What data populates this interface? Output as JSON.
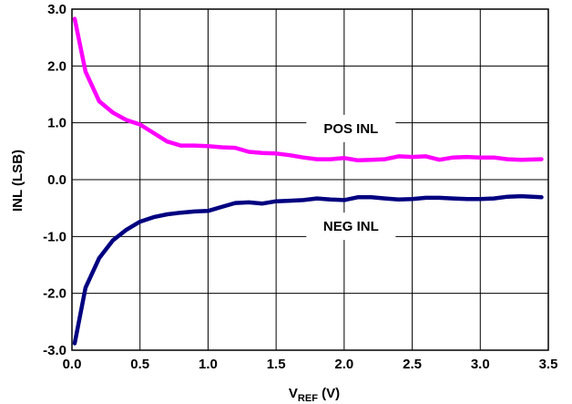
{
  "chart_data": {
    "type": "line",
    "xlabel_main": "V",
    "xlabel_sub": "REF",
    "xlabel_unit": " (V)",
    "ylabel": "INL (LSB)",
    "xlim": [
      0.0,
      3.5
    ],
    "ylim": [
      -3.0,
      3.0
    ],
    "x_ticks": [
      "0.0",
      "0.5",
      "1.0",
      "1.5",
      "2.0",
      "2.5",
      "3.0",
      "3.5"
    ],
    "y_ticks": [
      "3.0",
      "2.0",
      "1.0",
      "0.0",
      "-1.0",
      "-2.0",
      "-3.0"
    ],
    "grid": true,
    "series": [
      {
        "name": "POS INL",
        "color": "#ff00ff",
        "x": [
          0.02,
          0.1,
          0.2,
          0.3,
          0.4,
          0.5,
          0.6,
          0.7,
          0.8,
          0.9,
          1.0,
          1.1,
          1.2,
          1.3,
          1.4,
          1.5,
          1.6,
          1.7,
          1.8,
          1.9,
          2.0,
          2.1,
          2.2,
          2.3,
          2.4,
          2.5,
          2.6,
          2.7,
          2.8,
          2.9,
          3.0,
          3.1,
          3.2,
          3.3,
          3.45
        ],
        "y": [
          2.83,
          1.9,
          1.38,
          1.18,
          1.05,
          0.97,
          0.82,
          0.67,
          0.6,
          0.6,
          0.59,
          0.57,
          0.56,
          0.49,
          0.47,
          0.46,
          0.43,
          0.39,
          0.36,
          0.36,
          0.38,
          0.34,
          0.35,
          0.36,
          0.41,
          0.4,
          0.41,
          0.35,
          0.39,
          0.4,
          0.39,
          0.39,
          0.36,
          0.35,
          0.36
        ]
      },
      {
        "name": "NEG INL",
        "color": "#000080",
        "x": [
          0.02,
          0.1,
          0.2,
          0.3,
          0.4,
          0.5,
          0.6,
          0.7,
          0.8,
          0.9,
          1.0,
          1.1,
          1.2,
          1.3,
          1.4,
          1.5,
          1.6,
          1.7,
          1.8,
          1.9,
          2.0,
          2.1,
          2.2,
          2.3,
          2.4,
          2.5,
          2.6,
          2.7,
          2.8,
          2.9,
          3.0,
          3.1,
          3.2,
          3.3,
          3.45
        ],
        "y": [
          -2.88,
          -1.9,
          -1.38,
          -1.07,
          -0.88,
          -0.74,
          -0.66,
          -0.61,
          -0.58,
          -0.56,
          -0.55,
          -0.48,
          -0.41,
          -0.4,
          -0.42,
          -0.38,
          -0.37,
          -0.36,
          -0.33,
          -0.35,
          -0.36,
          -0.31,
          -0.31,
          -0.33,
          -0.35,
          -0.34,
          -0.32,
          -0.32,
          -0.33,
          -0.34,
          -0.34,
          -0.33,
          -0.3,
          -0.29,
          -0.31
        ]
      }
    ]
  }
}
